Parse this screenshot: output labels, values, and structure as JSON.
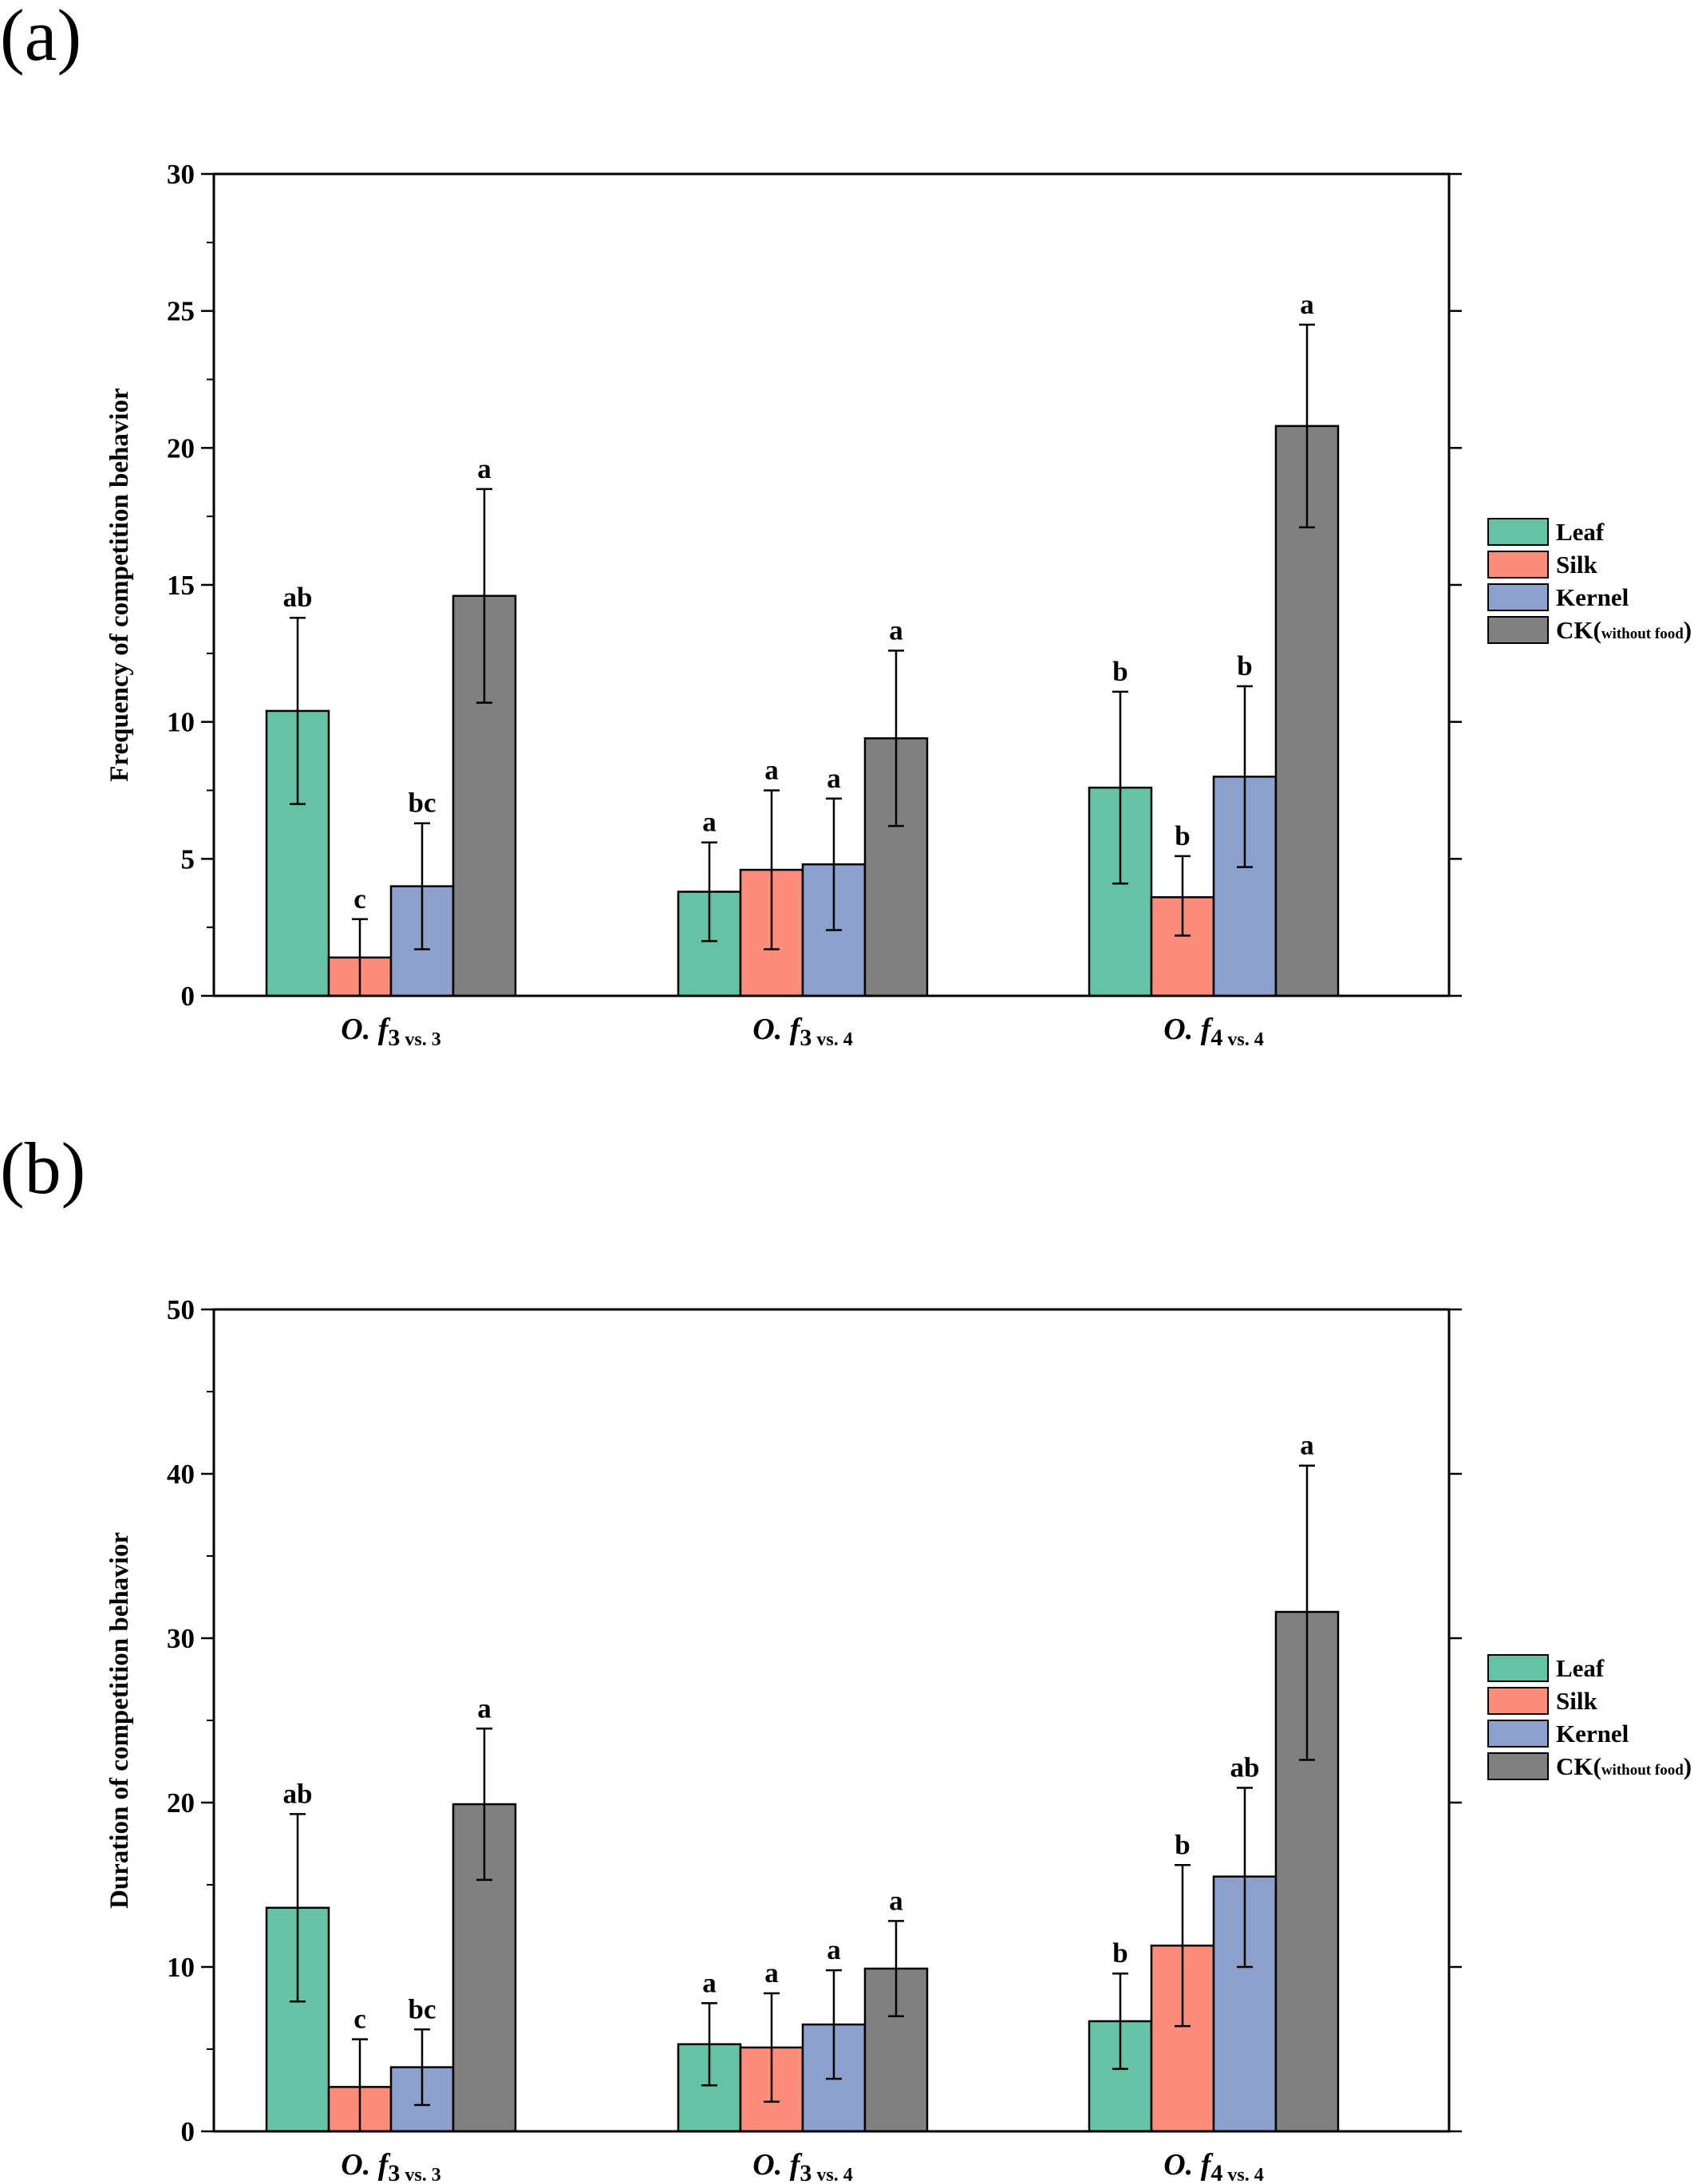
{
  "colors": {
    "Leaf": "#66c2a5",
    "Silk": "#fc8d7d",
    "Kernel": "#8da0cb",
    "CK": "#808080"
  },
  "legend": {
    "entries": [
      {
        "key": "Leaf",
        "label": "Leaf"
      },
      {
        "key": "Silk",
        "label": "Silk"
      },
      {
        "key": "Kernel",
        "label": "Kernel"
      },
      {
        "key": "CK",
        "label": "CK(",
        "sub": "without food",
        "close": ")"
      }
    ]
  },
  "chart_data": [
    {
      "type": "bar",
      "panel_label": "(a)",
      "ylabel": "Frequency of competition behavior",
      "ylim": [
        0,
        30
      ],
      "yticks": [
        0,
        5,
        10,
        15,
        20,
        25,
        30
      ],
      "categories": [
        {
          "main": "O. f",
          "num": "3",
          "sub": "vs. 3"
        },
        {
          "main": "O. f",
          "num": "3",
          "sub": "vs. 4"
        },
        {
          "main": "O. f",
          "num": "4",
          "sub": "vs. 4"
        }
      ],
      "legend_placement": "right",
      "series": [
        {
          "name": "Leaf",
          "values": [
            10.4,
            3.8,
            7.6
          ],
          "err_low": [
            7.0,
            2.0,
            4.1
          ],
          "err_high": [
            13.8,
            5.6,
            11.1
          ],
          "letters": [
            "ab",
            "a",
            "b"
          ]
        },
        {
          "name": "Silk",
          "values": [
            1.4,
            4.6,
            3.6
          ],
          "err_low": [
            0.0,
            1.7,
            2.2
          ],
          "err_high": [
            2.8,
            7.5,
            5.1
          ],
          "letters": [
            "c",
            "a",
            "b"
          ]
        },
        {
          "name": "Kernel",
          "values": [
            4.0,
            4.8,
            8.0
          ],
          "err_low": [
            1.7,
            2.4,
            4.7
          ],
          "err_high": [
            6.3,
            7.2,
            11.3
          ],
          "letters": [
            "bc",
            "a",
            "b"
          ]
        },
        {
          "name": "CK(without food)",
          "values": [
            14.6,
            9.4,
            20.8
          ],
          "err_low": [
            10.7,
            6.2,
            17.1
          ],
          "err_high": [
            18.5,
            12.6,
            24.5
          ],
          "letters": [
            "a",
            "a",
            "a"
          ]
        }
      ]
    },
    {
      "type": "bar",
      "panel_label": "(b)",
      "ylabel": "Duration of competition behavior",
      "ylim": [
        0,
        50
      ],
      "yticks": [
        0,
        10,
        20,
        30,
        40,
        50
      ],
      "categories": [
        {
          "main": "O. f",
          "num": "3",
          "sub": "vs. 3"
        },
        {
          "main": "O. f",
          "num": "3",
          "sub": "vs. 4"
        },
        {
          "main": "O. f",
          "num": "4",
          "sub": "vs. 4"
        }
      ],
      "legend_placement": "right",
      "series": [
        {
          "name": "Leaf",
          "values": [
            13.6,
            5.3,
            6.7
          ],
          "err_low": [
            7.9,
            2.8,
            3.8
          ],
          "err_high": [
            19.3,
            7.8,
            9.6
          ],
          "letters": [
            "ab",
            "a",
            "b"
          ]
        },
        {
          "name": "Silk",
          "values": [
            2.7,
            5.1,
            11.3
          ],
          "err_low": [
            0.0,
            1.8,
            6.4
          ],
          "err_high": [
            5.6,
            8.4,
            16.2
          ],
          "letters": [
            "c",
            "a",
            "b"
          ]
        },
        {
          "name": "Kernel",
          "values": [
            3.9,
            6.5,
            15.5
          ],
          "err_low": [
            1.6,
            3.2,
            10.0
          ],
          "err_high": [
            6.2,
            9.8,
            20.9
          ],
          "letters": [
            "bc",
            "a",
            "ab"
          ]
        },
        {
          "name": "CK(without food)",
          "values": [
            19.9,
            9.9,
            31.6
          ],
          "err_low": [
            15.3,
            7.0,
            22.6
          ],
          "err_high": [
            24.5,
            12.8,
            40.5
          ],
          "letters": [
            "a",
            "a",
            "a"
          ]
        }
      ]
    }
  ]
}
